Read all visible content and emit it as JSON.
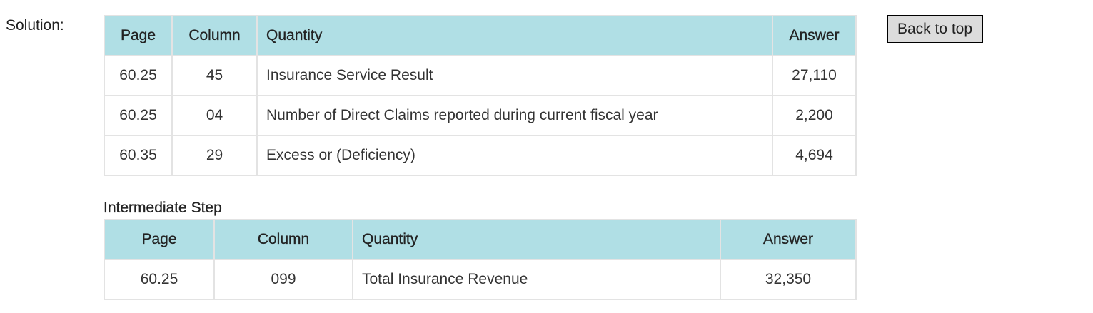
{
  "solution_label": "Solution:",
  "back_to_top": "Back to top",
  "solution_table": {
    "headers": [
      "Page",
      "Column",
      "Quantity",
      "Answer"
    ],
    "rows": [
      [
        "60.25",
        "45",
        "Insurance Service Result",
        "27,110"
      ],
      [
        "60.25",
        "04",
        "Number of Direct Claims reported during current fiscal year",
        "2,200"
      ],
      [
        "60.35",
        "29",
        "Excess or (Deficiency)",
        "4,694"
      ]
    ]
  },
  "intermediate": {
    "heading": "Intermediate Step",
    "headers": [
      "Page",
      "Column",
      "Quantity",
      "Answer"
    ],
    "rows": [
      [
        "60.25",
        "099",
        "Total Insurance Revenue",
        "32,350"
      ]
    ]
  },
  "colors": {
    "header_bg": "#b0dfe5",
    "border": "#e3e3e3",
    "button_bg": "#dcdcdc"
  }
}
